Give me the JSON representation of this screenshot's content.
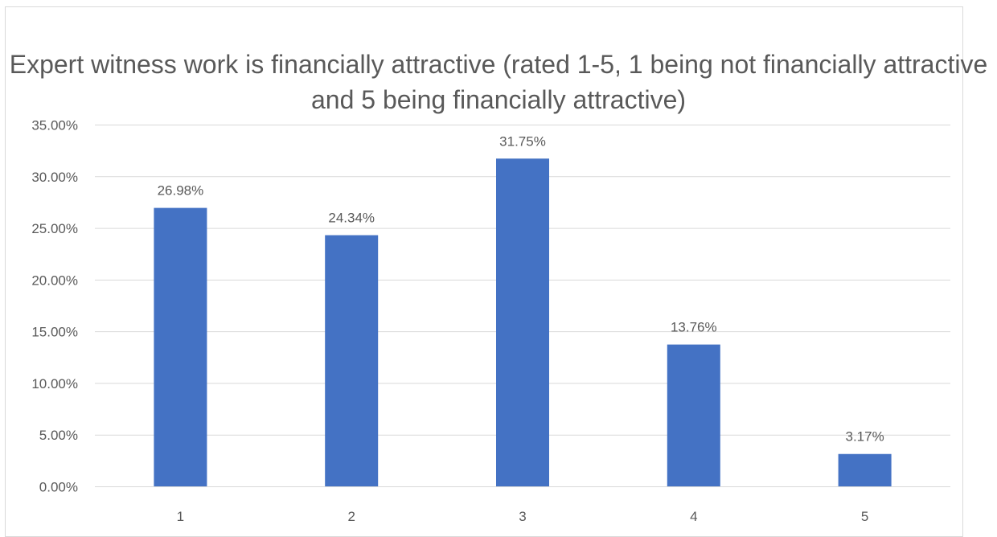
{
  "chart_data": {
    "type": "bar",
    "title": "Expert witness work is financially attractive (rated 1-5, 1 being not financially attractive and 5 being financially attractive)",
    "categories": [
      "1",
      "2",
      "3",
      "4",
      "5"
    ],
    "values": [
      26.98,
      24.34,
      31.75,
      13.76,
      3.17
    ],
    "data_labels": [
      "26.98%",
      "24.34%",
      "31.75%",
      "13.76%",
      "3.17%"
    ],
    "y_ticks": [
      "0.00%",
      "5.00%",
      "10.00%",
      "15.00%",
      "20.00%",
      "25.00%",
      "30.00%",
      "35.00%"
    ],
    "ylim": [
      0,
      35
    ],
    "xlabel": "",
    "ylabel": "",
    "grid": true,
    "legend": "none",
    "bar_color": "#4472C4",
    "gridline_color": "#d9d9d9",
    "text_color": "#595959"
  }
}
